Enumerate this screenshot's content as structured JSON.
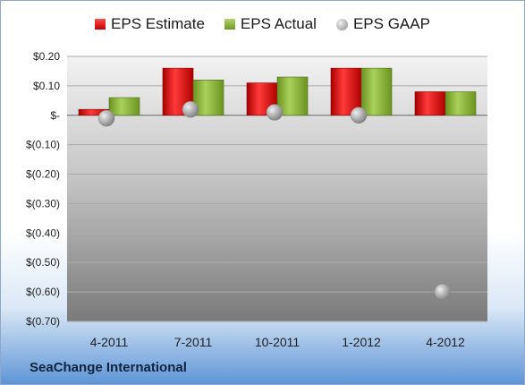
{
  "legend": {
    "estimate_label": "EPS Estimate",
    "actual_label": "EPS Actual",
    "gaap_label": "EPS GAAP"
  },
  "company": "SeaChange International",
  "colors": {
    "estimate": "#d81e1e",
    "actual": "#8db33a",
    "gaap": "#9a9a9a"
  },
  "chart_data": {
    "type": "bar",
    "categories": [
      "4-2011",
      "7-2011",
      "10-2011",
      "1-2012",
      "4-2012"
    ],
    "series": [
      {
        "name": "EPS Estimate",
        "values": [
          0.02,
          0.16,
          0.11,
          0.16,
          0.08
        ]
      },
      {
        "name": "EPS Actual",
        "values": [
          0.06,
          0.12,
          0.13,
          0.16,
          0.08
        ]
      },
      {
        "name": "EPS GAAP",
        "kind": "point",
        "values": [
          -0.01,
          0.02,
          0.01,
          0.0,
          -0.6
        ]
      }
    ],
    "ylim": [
      -0.7,
      0.2
    ],
    "yticks": [
      0.2,
      0.1,
      0,
      -0.1,
      -0.2,
      -0.3,
      -0.4,
      -0.5,
      -0.6,
      -0.7
    ],
    "ytick_labels": [
      "$0.20",
      "$0.10",
      "$-",
      "$(0.10)",
      "$(0.20)",
      "$(0.30)",
      "$(0.40)",
      "$(0.50)",
      "$(0.60)",
      "$(0.70)"
    ],
    "grid": true,
    "legend_position": "top"
  }
}
